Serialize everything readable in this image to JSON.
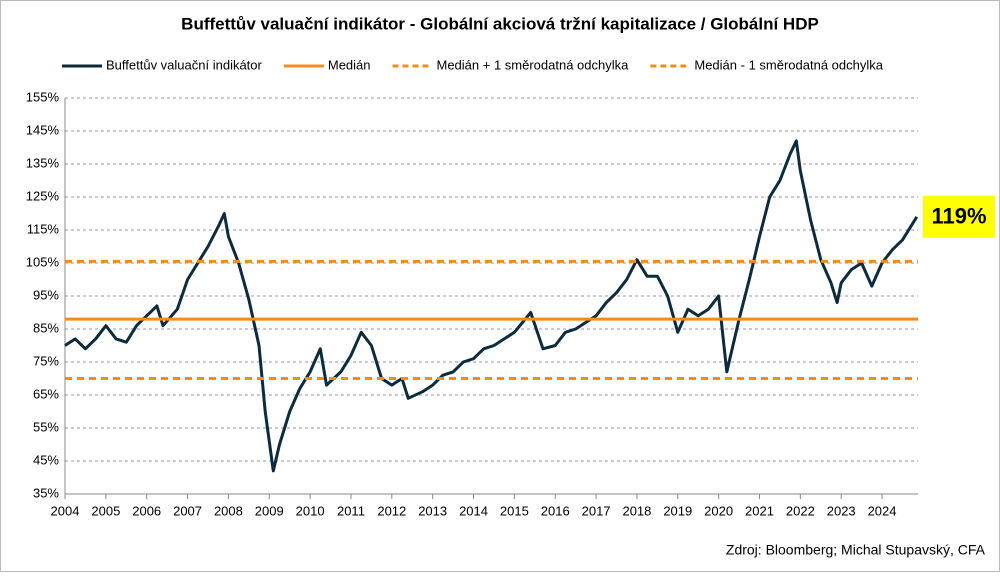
{
  "chart_data": {
    "type": "line",
    "title": "Buffettův valuační indikátor - Globální akciová tržní kapitalizace / Globální HDP",
    "source": "Zdroj: Bloomberg; Michal Stupavský, CFA",
    "x": [
      2004.0,
      2004.25,
      2004.5,
      2004.75,
      2005.0,
      2005.25,
      2005.5,
      2005.75,
      2006.0,
      2006.25,
      2006.4,
      2006.75,
      2007.0,
      2007.25,
      2007.5,
      2007.75,
      2007.9,
      2008.0,
      2008.25,
      2008.5,
      2008.75,
      2008.9,
      2009.1,
      2009.25,
      2009.5,
      2009.75,
      2010.0,
      2010.25,
      2010.4,
      2010.75,
      2011.0,
      2011.25,
      2011.5,
      2011.75,
      2012.0,
      2012.25,
      2012.4,
      2012.75,
      2013.0,
      2013.25,
      2013.5,
      2013.75,
      2014.0,
      2014.25,
      2014.5,
      2014.75,
      2015.0,
      2015.4,
      2015.7,
      2016.0,
      2016.25,
      2016.5,
      2016.75,
      2017.0,
      2017.25,
      2017.5,
      2017.75,
      2018.0,
      2018.25,
      2018.5,
      2018.75,
      2019.0,
      2019.25,
      2019.5,
      2019.75,
      2020.0,
      2020.2,
      2020.5,
      2020.75,
      2021.0,
      2021.25,
      2021.5,
      2021.75,
      2021.9,
      2022.0,
      2022.25,
      2022.5,
      2022.75,
      2022.9,
      2023.0,
      2023.25,
      2023.5,
      2023.75,
      2024.0,
      2024.25,
      2024.5,
      2024.85
    ],
    "series": [
      {
        "name": "Buffettův valuační indikátor",
        "color": "#0d2b3e",
        "values": [
          80,
          82,
          79,
          82,
          86,
          82,
          81,
          86,
          89,
          92,
          86,
          91,
          100,
          105,
          110,
          116,
          120,
          113,
          105,
          94,
          80,
          60,
          42,
          50,
          60,
          67,
          72,
          79,
          68,
          72,
          77,
          84,
          80,
          70,
          68,
          70,
          64,
          66,
          68,
          71,
          72,
          75,
          76,
          79,
          80,
          82,
          84,
          90,
          79,
          80,
          84,
          85,
          87,
          89,
          93,
          96,
          100,
          106,
          101,
          101,
          95,
          84,
          91,
          89,
          91,
          95,
          72,
          88,
          100,
          113,
          125,
          130,
          138,
          142,
          133,
          118,
          106,
          99,
          93,
          99,
          103,
          105,
          98,
          105,
          109,
          112,
          119
        ]
      },
      {
        "name": "Medián",
        "color": "#f28c1c",
        "dash": false,
        "level": 88
      },
      {
        "name": "Medián + 1 směrodatná odchylka",
        "color": "#f28c1c",
        "dash": true,
        "level": 105.5
      },
      {
        "name": "Medián - 1 směrodatná odchylka",
        "color": "#f28c1c",
        "dash": true,
        "level": 70
      }
    ],
    "annotations": [
      {
        "text": "119%",
        "y": 119
      }
    ],
    "xlim": [
      2004,
      2024.88
    ],
    "xticks": [
      2004,
      2005,
      2006,
      2007,
      2008,
      2009,
      2010,
      2011,
      2012,
      2013,
      2014,
      2015,
      2016,
      2017,
      2018,
      2019,
      2020,
      2021,
      2022,
      2023,
      2024
    ],
    "ylim": [
      35,
      155
    ],
    "yticks": [
      {
        "value": 35,
        "label": "35%"
      },
      {
        "value": 45,
        "label": "45%"
      },
      {
        "value": 55,
        "label": "55%"
      },
      {
        "value": 65,
        "label": "65%"
      },
      {
        "value": 75,
        "label": "75%"
      },
      {
        "value": 85,
        "label": "85%"
      },
      {
        "value": 95,
        "label": "95%"
      },
      {
        "value": 105,
        "label": "105%"
      },
      {
        "value": 115,
        "label": "115%"
      },
      {
        "value": 125,
        "label": "125%"
      },
      {
        "value": 135,
        "label": "135%"
      },
      {
        "value": 145,
        "label": "145%"
      },
      {
        "value": 155,
        "label": "155%"
      }
    ],
    "grid": true
  }
}
